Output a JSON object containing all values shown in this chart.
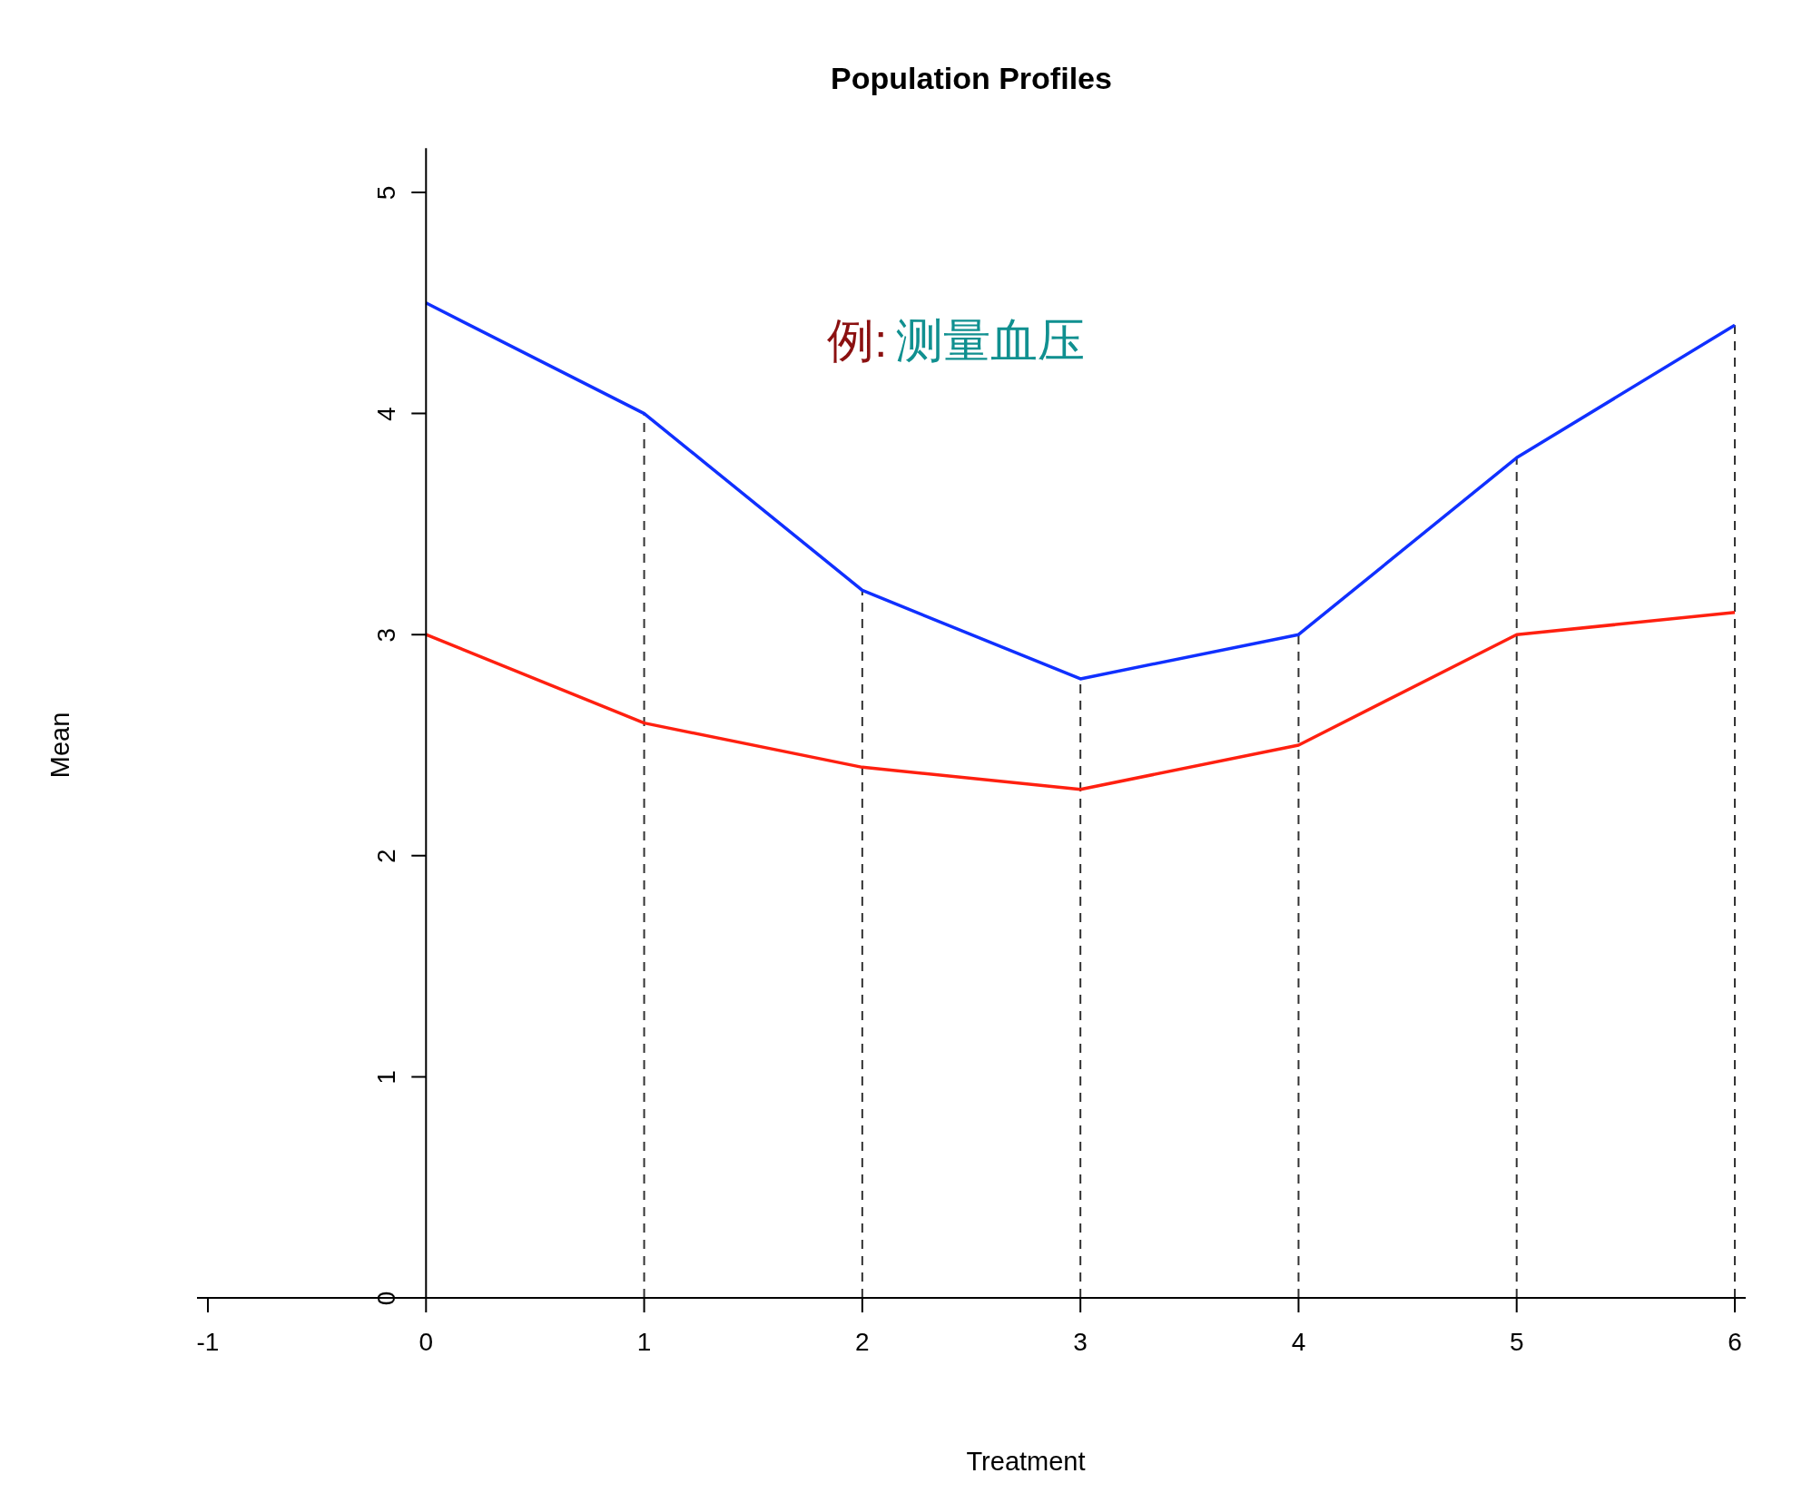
{
  "chart_data": {
    "type": "line",
    "title": "Population Profiles",
    "xlabel": "Treatment",
    "ylabel": "Mean",
    "x": [
      0,
      1,
      2,
      3,
      4,
      5,
      6
    ],
    "series": [
      {
        "color": "#1030ff",
        "values": [
          4.5,
          4.0,
          3.2,
          2.8,
          3.0,
          3.8,
          4.4
        ]
      },
      {
        "color": "#ff2010",
        "values": [
          3.0,
          2.6,
          2.4,
          2.3,
          2.5,
          3.0,
          3.1
        ]
      }
    ],
    "xlim": [
      -1.05,
      6.05
    ],
    "ylim": [
      0,
      5.2
    ],
    "xticks": [
      -1,
      0,
      1,
      2,
      3,
      4,
      5,
      6
    ],
    "yticks": [
      0,
      1,
      2,
      3,
      4,
      5
    ],
    "ref_lines": [
      {
        "axis": "x",
        "value": 1,
        "line_style": "dashed",
        "color": "#333333"
      },
      {
        "axis": "x",
        "value": 2,
        "line_style": "dashed",
        "color": "#333333"
      },
      {
        "axis": "x",
        "value": 3,
        "line_style": "dashed",
        "color": "#333333"
      },
      {
        "axis": "x",
        "value": 4,
        "line_style": "dashed",
        "color": "#333333"
      },
      {
        "axis": "x",
        "value": 5,
        "line_style": "dashed",
        "color": "#333333"
      },
      {
        "axis": "x",
        "value": 6,
        "line_style": "dashed",
        "color": "#333333"
      }
    ],
    "annotations": [
      "例:",
      "测量血压"
    ],
    "grid": false,
    "line_style": "solid",
    "marker": "none"
  }
}
